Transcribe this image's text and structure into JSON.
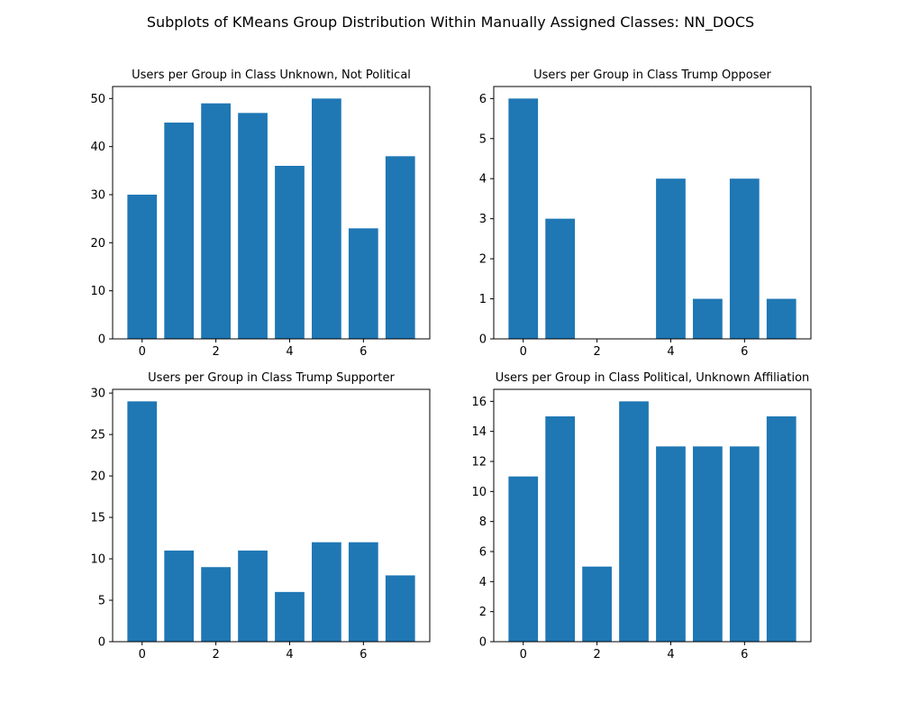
{
  "figure": {
    "suptitle": "Subplots of KMeans Group Distribution Within Manually Assigned Classes: NN_DOCS",
    "bar_color": "#1f77b4"
  },
  "chart_data": [
    {
      "type": "bar",
      "title": "Users per Group in Class Unknown, Not Political",
      "xlabel": "",
      "ylabel": "",
      "categories": [
        0,
        1,
        2,
        3,
        4,
        5,
        6,
        7
      ],
      "values": [
        30,
        45,
        49,
        47,
        36,
        50,
        23,
        38
      ],
      "xlim": [
        -0.8,
        7.8
      ],
      "ylim": [
        0,
        52.5
      ],
      "xticks": [
        0,
        2,
        4,
        6
      ],
      "yticks": [
        0,
        10,
        20,
        30,
        40,
        50
      ],
      "grid": false
    },
    {
      "type": "bar",
      "title": "Users per Group in Class Trump Opposer",
      "xlabel": "",
      "ylabel": "",
      "categories": [
        0,
        1,
        2,
        3,
        4,
        5,
        6,
        7
      ],
      "values": [
        6,
        3,
        0,
        0,
        4,
        1,
        4,
        1
      ],
      "xlim": [
        -0.8,
        7.8
      ],
      "ylim": [
        0,
        6.3
      ],
      "xticks": [
        0,
        2,
        4,
        6
      ],
      "yticks": [
        0,
        1,
        2,
        3,
        4,
        5,
        6
      ],
      "grid": false
    },
    {
      "type": "bar",
      "title": "Users per Group in Class Trump Supporter",
      "xlabel": "",
      "ylabel": "",
      "categories": [
        0,
        1,
        2,
        3,
        4,
        5,
        6,
        7
      ],
      "values": [
        29,
        11,
        9,
        11,
        6,
        12,
        12,
        8
      ],
      "xlim": [
        -0.8,
        7.8
      ],
      "ylim": [
        0,
        30.45
      ],
      "xticks": [
        0,
        2,
        4,
        6
      ],
      "yticks": [
        0,
        5,
        10,
        15,
        20,
        25,
        30
      ],
      "grid": false
    },
    {
      "type": "bar",
      "title": "Users per Group in Class Political, Unknown Affiliation",
      "xlabel": "",
      "ylabel": "",
      "categories": [
        0,
        1,
        2,
        3,
        4,
        5,
        6,
        7
      ],
      "values": [
        11,
        15,
        5,
        16,
        13,
        13,
        13,
        15
      ],
      "xlim": [
        -0.8,
        7.8
      ],
      "ylim": [
        0,
        16.8
      ],
      "xticks": [
        0,
        2,
        4,
        6
      ],
      "yticks": [
        0,
        2,
        4,
        6,
        8,
        10,
        12,
        14,
        16
      ],
      "grid": false
    }
  ]
}
